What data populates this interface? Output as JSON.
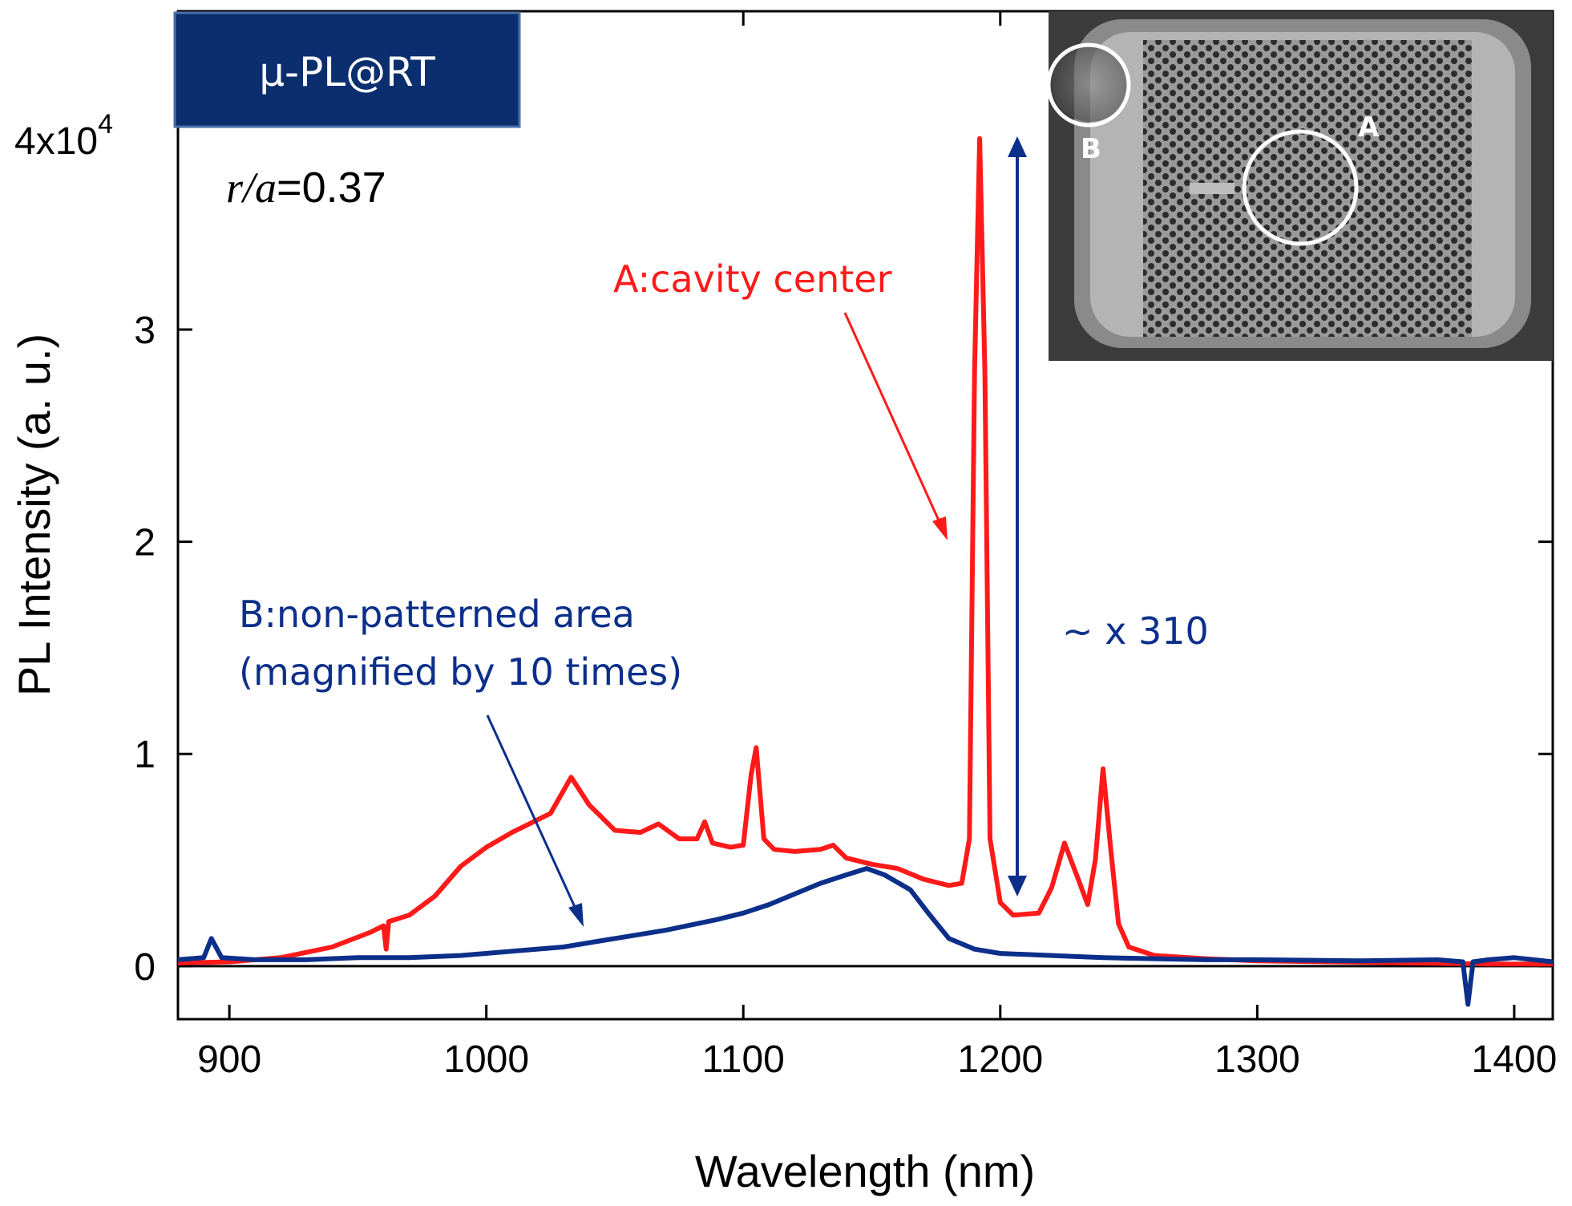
{
  "chart_data": {
    "type": "line",
    "title": "",
    "badge": "μ-PL@RT",
    "param_label": {
      "symbol": "r/a",
      "value": "=0.37"
    },
    "xlabel": "Wavelength (nm)",
    "ylabel": "PL Intensity (a. u.)",
    "xlim": [
      880,
      1415
    ],
    "ylim": [
      -2500,
      45000
    ],
    "x_ticks": [
      900,
      1000,
      1100,
      1200,
      1300,
      1400
    ],
    "x_tick_labels": [
      "900",
      "1000",
      "1100",
      "1200",
      "1300",
      "1400"
    ],
    "y_ticks": [
      0,
      10000,
      20000,
      30000,
      40000
    ],
    "y_tick_labels": [
      "0",
      "1",
      "2",
      "3",
      ""
    ],
    "y_top_label": {
      "mantissa": "4x10",
      "exponent": "4"
    },
    "grid": false,
    "series": [
      {
        "name": "A:cavity center",
        "color": "#ff1a1a",
        "points": [
          [
            880,
            150
          ],
          [
            900,
            200
          ],
          [
            920,
            400
          ],
          [
            940,
            900
          ],
          [
            955,
            1600
          ],
          [
            960,
            1900
          ],
          [
            961,
            800
          ],
          [
            962,
            2100
          ],
          [
            970,
            2400
          ],
          [
            980,
            3300
          ],
          [
            990,
            4700
          ],
          [
            1000,
            5600
          ],
          [
            1010,
            6300
          ],
          [
            1015,
            6600
          ],
          [
            1025,
            7200
          ],
          [
            1033,
            8900
          ],
          [
            1040,
            7600
          ],
          [
            1050,
            6400
          ],
          [
            1060,
            6300
          ],
          [
            1067,
            6700
          ],
          [
            1075,
            6000
          ],
          [
            1082,
            6000
          ],
          [
            1085,
            6800
          ],
          [
            1088,
            5800
          ],
          [
            1095,
            5600
          ],
          [
            1100,
            5700
          ],
          [
            1103,
            9000
          ],
          [
            1105,
            10300
          ],
          [
            1108,
            6000
          ],
          [
            1112,
            5500
          ],
          [
            1120,
            5400
          ],
          [
            1130,
            5500
          ],
          [
            1135,
            5700
          ],
          [
            1140,
            5100
          ],
          [
            1150,
            4800
          ],
          [
            1160,
            4600
          ],
          [
            1170,
            4100
          ],
          [
            1180,
            3800
          ],
          [
            1185,
            3900
          ],
          [
            1188,
            6000
          ],
          [
            1190,
            28000
          ],
          [
            1192,
            39000
          ],
          [
            1194,
            28000
          ],
          [
            1196,
            6000
          ],
          [
            1200,
            3000
          ],
          [
            1205,
            2400
          ],
          [
            1215,
            2500
          ],
          [
            1220,
            3700
          ],
          [
            1225,
            5800
          ],
          [
            1230,
            4200
          ],
          [
            1234,
            2900
          ],
          [
            1237,
            5000
          ],
          [
            1240,
            9300
          ],
          [
            1243,
            5500
          ],
          [
            1246,
            2000
          ],
          [
            1250,
            900
          ],
          [
            1260,
            500
          ],
          [
            1280,
            350
          ],
          [
            1300,
            250
          ],
          [
            1330,
            200
          ],
          [
            1360,
            150
          ],
          [
            1390,
            100
          ],
          [
            1415,
            100
          ]
        ]
      },
      {
        "name": "B:non-patterned area (magnified by 10 times)",
        "color": "#0c2f8a",
        "points": [
          [
            880,
            300
          ],
          [
            890,
            400
          ],
          [
            893,
            1300
          ],
          [
            897,
            400
          ],
          [
            910,
            300
          ],
          [
            930,
            300
          ],
          [
            950,
            400
          ],
          [
            970,
            400
          ],
          [
            990,
            500
          ],
          [
            1010,
            700
          ],
          [
            1030,
            900
          ],
          [
            1050,
            1300
          ],
          [
            1070,
            1700
          ],
          [
            1090,
            2200
          ],
          [
            1100,
            2500
          ],
          [
            1110,
            2900
          ],
          [
            1120,
            3400
          ],
          [
            1130,
            3900
          ],
          [
            1140,
            4300
          ],
          [
            1148,
            4600
          ],
          [
            1155,
            4300
          ],
          [
            1165,
            3600
          ],
          [
            1172,
            2500
          ],
          [
            1180,
            1300
          ],
          [
            1190,
            800
          ],
          [
            1200,
            600
          ],
          [
            1220,
            500
          ],
          [
            1240,
            400
          ],
          [
            1260,
            350
          ],
          [
            1280,
            300
          ],
          [
            1300,
            300
          ],
          [
            1340,
            250
          ],
          [
            1370,
            300
          ],
          [
            1380,
            200
          ],
          [
            1382,
            -1800
          ],
          [
            1384,
            200
          ],
          [
            1390,
            300
          ],
          [
            1400,
            400
          ],
          [
            1415,
            200
          ]
        ]
      }
    ],
    "annotations": {
      "series_a_label": "A:cavity center",
      "series_b_label_line1": "B:non-patterned area",
      "series_b_label_line2": "(magnified by 10 times)",
      "ratio_label": "~ x 310"
    },
    "inset": {
      "description": "SEM image of photonic crystal cavity",
      "point_a": "A",
      "point_b": "B"
    }
  }
}
